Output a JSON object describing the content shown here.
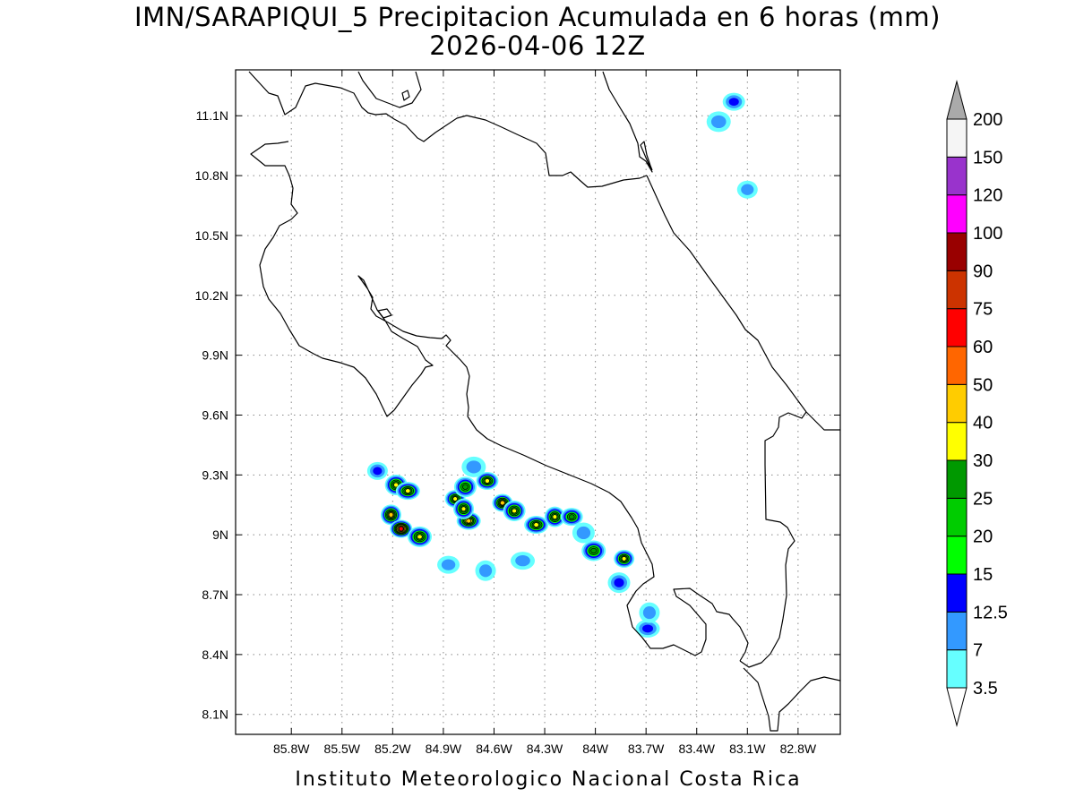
{
  "figure": {
    "title": "IMN/SARAPIQUI_5 Precipitacion Acumulada en 6 horas (mm)",
    "valid_time": "2026-04-06 12Z",
    "credit": "Instituto Meteorologico Nacional Costa Rica"
  },
  "map": {
    "lon_range": [
      -86.13,
      -82.55
    ],
    "lat_range": [
      8.0,
      11.33
    ],
    "lon_ticks": [
      "85.8W",
      "85.5W",
      "85.2W",
      "84.9W",
      "84.6W",
      "84.3W",
      "84W",
      "83.7W",
      "83.4W",
      "83.1W",
      "82.8W"
    ],
    "lat_ticks": [
      "11.1N",
      "10.8N",
      "10.5N",
      "10.2N",
      "9.9N",
      "9.6N",
      "9.3N",
      "9N",
      "8.7N",
      "8.4N",
      "8.1N"
    ],
    "grid": "dotted",
    "coastline_color": "#000000"
  },
  "colorbar": {
    "labels": [
      "3.5",
      "7",
      "12.5",
      "15",
      "20",
      "25",
      "30",
      "40",
      "50",
      "60",
      "75",
      "90",
      "100",
      "120",
      "150",
      "200"
    ],
    "colors": [
      "#ffffff",
      "#66ffff",
      "#3399ff",
      "#0000ff",
      "#00ff00",
      "#00cc00",
      "#009900",
      "#ffff00",
      "#ffcc00",
      "#ff6600",
      "#ff0000",
      "#cc3300",
      "#990000",
      "#ff00ff",
      "#9933cc",
      "#f5f5f5",
      "#aaaaaa"
    ],
    "extend": "both"
  },
  "chart_data": {
    "type": "heatmap",
    "variable": "6-hour accumulated precipitation (mm)",
    "levels": [
      3.5,
      7,
      12.5,
      15,
      20,
      25,
      30,
      40,
      50,
      60,
      75,
      90,
      100,
      120,
      150,
      200
    ],
    "cells": [
      {
        "lon": -85.29,
        "lat": 9.32,
        "peak": 12.5
      },
      {
        "lon": -85.18,
        "lat": 9.25,
        "peak": 30
      },
      {
        "lon": -85.11,
        "lat": 9.22,
        "peak": 30
      },
      {
        "lon": -85.21,
        "lat": 9.1,
        "peak": 40
      },
      {
        "lon": -85.15,
        "lat": 9.03,
        "peak": 60
      },
      {
        "lon": -85.04,
        "lat": 8.99,
        "peak": 30
      },
      {
        "lon": -84.83,
        "lat": 9.18,
        "peak": 30
      },
      {
        "lon": -84.77,
        "lat": 9.24,
        "peak": 25
      },
      {
        "lon": -84.75,
        "lat": 9.07,
        "peak": 40
      },
      {
        "lon": -84.78,
        "lat": 9.13,
        "peak": 30
      },
      {
        "lon": -84.64,
        "lat": 9.27,
        "peak": 30
      },
      {
        "lon": -84.72,
        "lat": 9.34,
        "peak": 7
      },
      {
        "lon": -84.55,
        "lat": 9.16,
        "peak": 40
      },
      {
        "lon": -84.48,
        "lat": 9.12,
        "peak": 30
      },
      {
        "lon": -84.35,
        "lat": 9.05,
        "peak": 30
      },
      {
        "lon": -84.24,
        "lat": 9.09,
        "peak": 30
      },
      {
        "lon": -84.14,
        "lat": 9.09,
        "peak": 25
      },
      {
        "lon": -84.01,
        "lat": 8.92,
        "peak": 25
      },
      {
        "lon": -83.83,
        "lat": 8.88,
        "peak": 30
      },
      {
        "lon": -83.86,
        "lat": 8.76,
        "peak": 12.5
      },
      {
        "lon": -83.69,
        "lat": 8.53,
        "peak": 12.5
      },
      {
        "lon": -83.68,
        "lat": 8.61,
        "peak": 7
      },
      {
        "lon": -83.18,
        "lat": 11.17,
        "peak": 12.5
      },
      {
        "lon": -83.27,
        "lat": 11.07,
        "peak": 7
      },
      {
        "lon": -83.1,
        "lat": 10.73,
        "peak": 7
      },
      {
        "lon": -84.07,
        "lat": 9.01,
        "peak": 7
      },
      {
        "lon": -84.43,
        "lat": 8.87,
        "peak": 7
      },
      {
        "lon": -84.65,
        "lat": 8.82,
        "peak": 7
      },
      {
        "lon": -84.87,
        "lat": 8.85,
        "peak": 7
      }
    ]
  }
}
